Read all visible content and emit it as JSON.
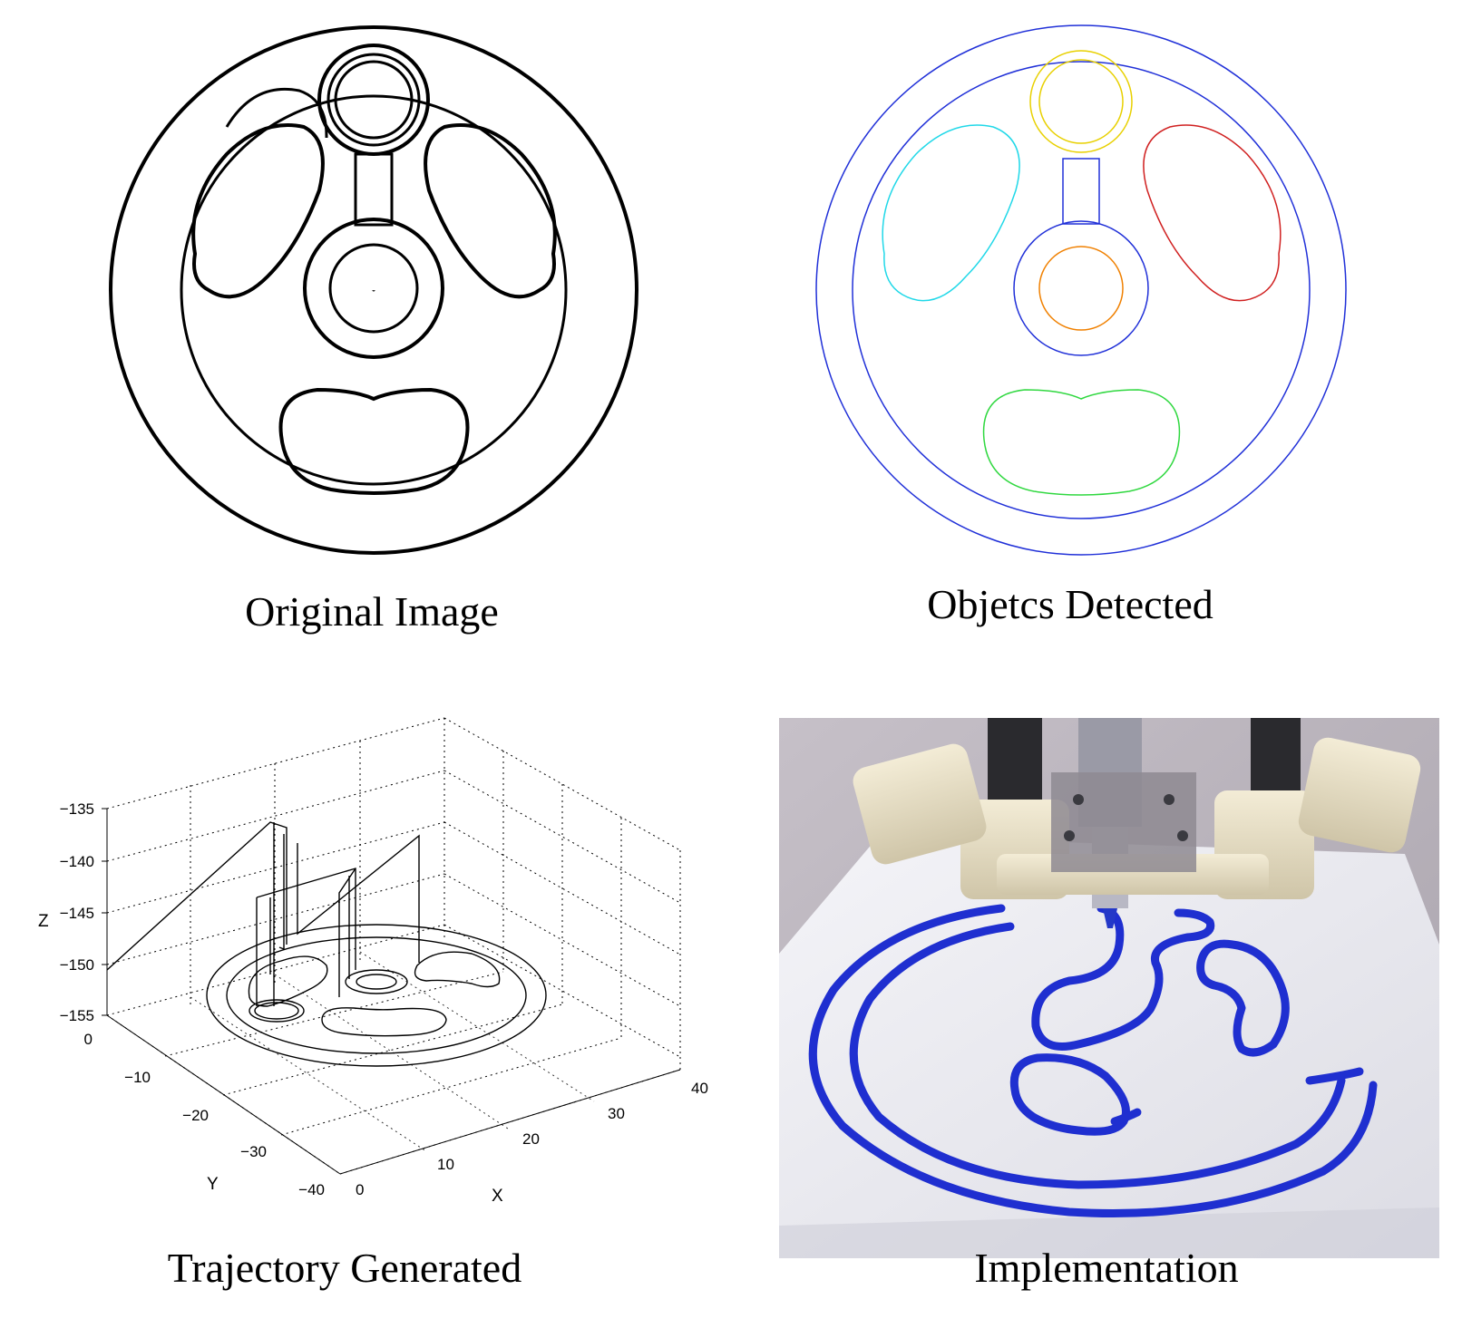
{
  "captions": {
    "original": "Original Image",
    "detected": "Objetcs Detected",
    "trajectory": "Trajectory Generated",
    "implementation": "Implementation"
  },
  "colors": {
    "outer_contour": "#2030d8",
    "top_hub": "#e8d000",
    "left_slot": "#20d8e8",
    "right_slot": "#d02020",
    "center_hub": "#f08000",
    "bottom_slot": "#30d840",
    "marker_ink": "#1f2fd0"
  },
  "plot3d": {
    "xlabel": "X",
    "ylabel": "Y",
    "zlabel": "Z",
    "x_ticks": [
      "0",
      "10",
      "20",
      "30",
      "40"
    ],
    "y_ticks": [
      "0",
      "−10",
      "−20",
      "−30",
      "−40"
    ],
    "z_ticks": [
      "−135",
      "−140",
      "−145",
      "−150",
      "−155"
    ],
    "xlim": [
      0,
      40
    ],
    "ylim": [
      -40,
      0
    ],
    "zlim": [
      -155,
      -135
    ],
    "grid": "dotted"
  },
  "photo": {
    "subject": "delta robot drawing the wheel contours with a blue marker"
  }
}
